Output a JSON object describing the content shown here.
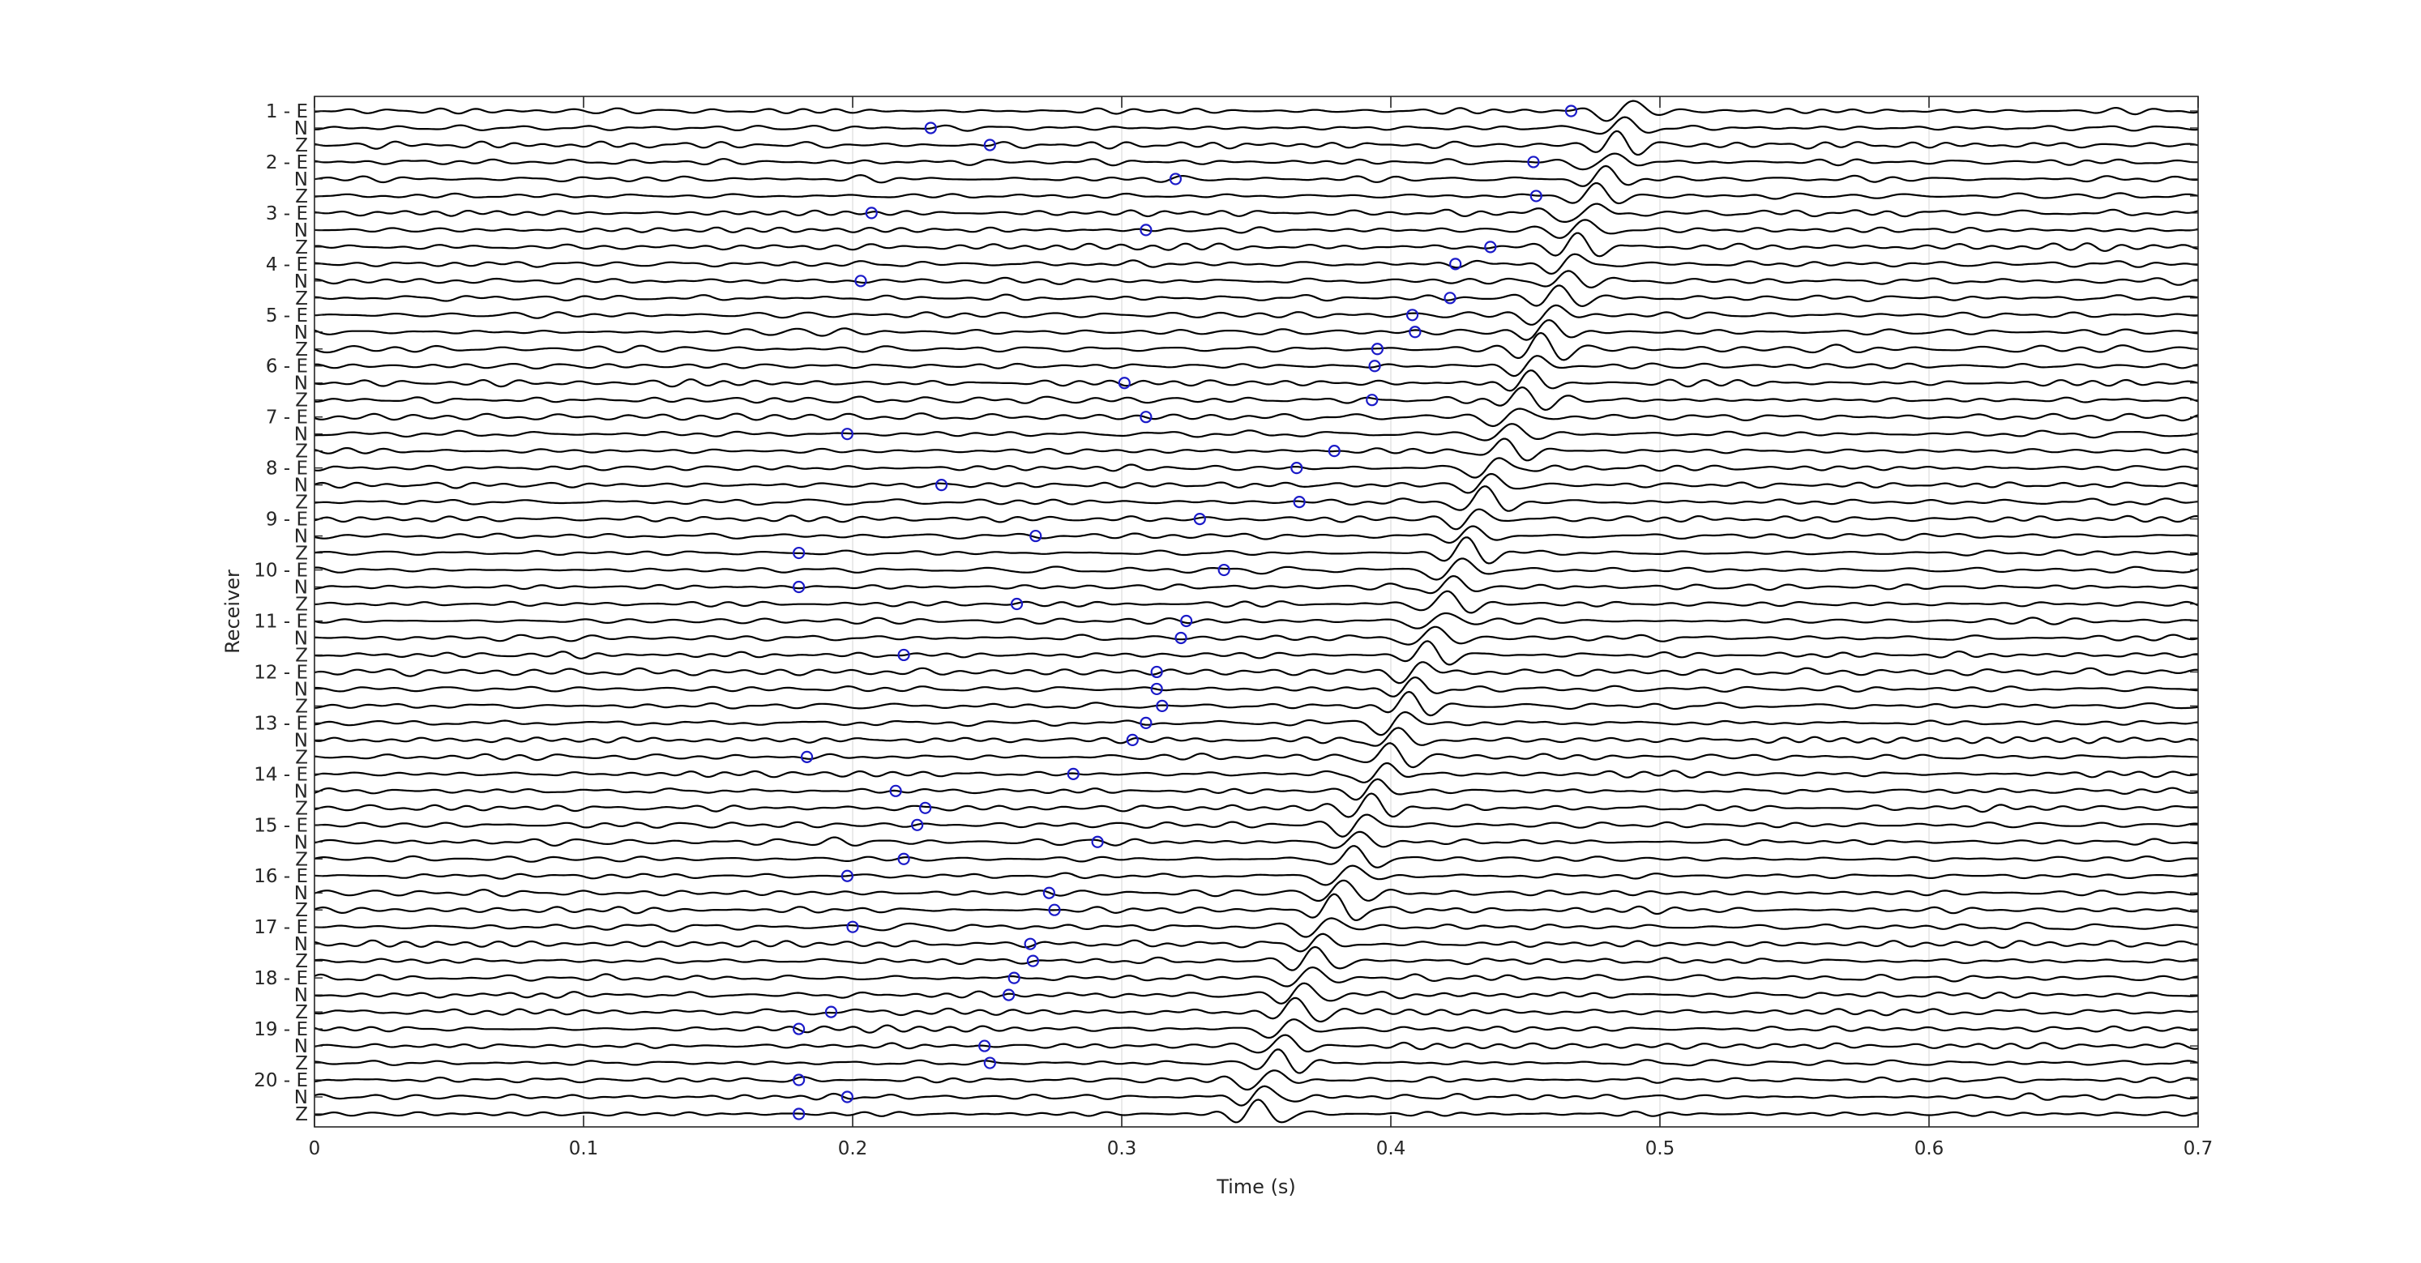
{
  "chart_data": {
    "type": "line",
    "subtype": "seismic-wiggle-traces",
    "xlabel": "Time (s)",
    "ylabel": "Receiver",
    "xlim": [
      0,
      0.7
    ],
    "x_ticks": [
      0,
      0.1,
      0.2,
      0.3,
      0.4,
      0.5,
      0.6,
      0.7
    ],
    "x_tick_labels": [
      "0",
      "0.1",
      "0.2",
      "0.3",
      "0.4",
      "0.5",
      "0.6",
      "0.7"
    ],
    "grid": "x",
    "components": [
      "E",
      "N",
      "Z"
    ],
    "receivers": [
      1,
      2,
      3,
      4,
      5,
      6,
      7,
      8,
      9,
      10,
      11,
      12,
      13,
      14,
      15,
      16,
      17,
      18,
      19,
      20
    ],
    "trace_labels": [
      "1 - E",
      "N",
      "Z",
      "2 - E",
      "N",
      "Z",
      "3 - E",
      "N",
      "Z",
      "4 - E",
      "N",
      "Z",
      "5 - E",
      "N",
      "Z",
      "6 - E",
      "N",
      "Z",
      "7 - E",
      "N",
      "Z",
      "8 - E",
      "N",
      "Z",
      "9 - E",
      "N",
      "Z",
      "10 - E",
      "N",
      "Z",
      "11 - E",
      "N",
      "Z",
      "12 - E",
      "N",
      "Z",
      "13 - E",
      "N",
      "Z",
      "14 - E",
      "N",
      "Z",
      "15 - E",
      "N",
      "Z",
      "16 - E",
      "N",
      "Z",
      "17 - E",
      "N",
      "Z",
      "18 - E",
      "N",
      "Z",
      "19 - E",
      "N",
      "Z",
      "20 - E",
      "N",
      "Z"
    ],
    "arrival_times": [
      0.485,
      0.478,
      0.471,
      0.464,
      0.457,
      0.45,
      0.443,
      0.436,
      0.429,
      0.422,
      0.415,
      0.408,
      0.401,
      0.394,
      0.387,
      0.38,
      0.373,
      0.366,
      0.359,
      0.352
    ],
    "picks": [
      0.467,
      0.229,
      0.251,
      0.453,
      0.32,
      0.454,
      0.207,
      0.309,
      0.437,
      0.424,
      0.203,
      0.422,
      0.408,
      0.409,
      0.395,
      0.394,
      0.301,
      0.393,
      0.309,
      0.198,
      0.379,
      0.365,
      0.233,
      0.366,
      0.329,
      0.268,
      0.18,
      0.338,
      0.18,
      0.261,
      0.324,
      0.322,
      0.219,
      0.313,
      0.313,
      0.315,
      0.309,
      0.304,
      0.183,
      0.282,
      0.216,
      0.227,
      0.224,
      0.291,
      0.219,
      0.198,
      0.273,
      0.275,
      0.2,
      0.266,
      0.267,
      0.26,
      0.258,
      0.192,
      0.18,
      0.249,
      0.251,
      0.18,
      0.198,
      0.18
    ],
    "colors": {
      "trace": "#000000",
      "pick": "#1a1ac8",
      "axis": "#262626",
      "grid": "#dcdcdc"
    }
  }
}
